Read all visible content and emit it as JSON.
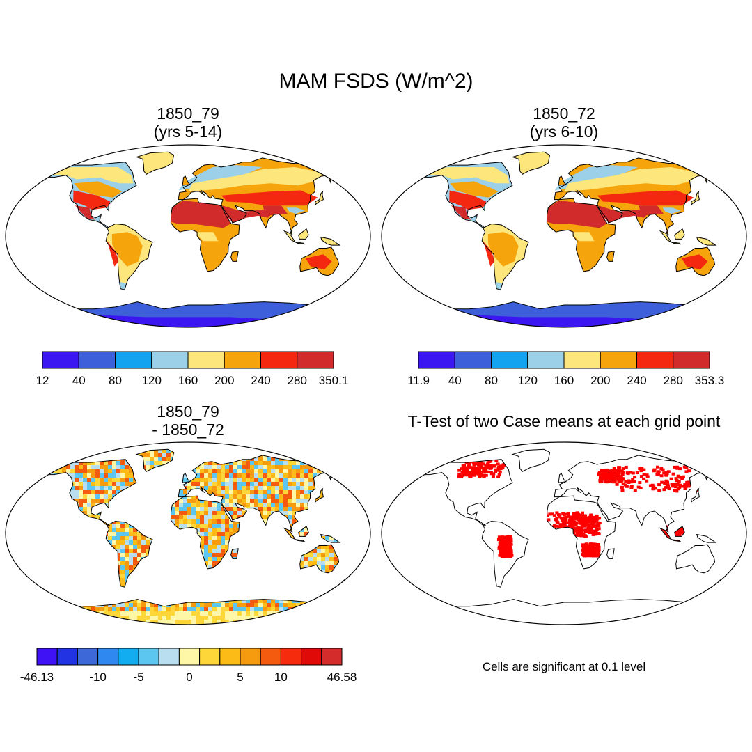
{
  "title": "MAM FSDS (W/m^2)",
  "panels": [
    {
      "id": "case1",
      "title_line1": "1850_79",
      "title_line2": "(yrs 5-14)"
    },
    {
      "id": "case2",
      "title_line1": "1850_72",
      "title_line2": "(yrs 6-10)"
    },
    {
      "id": "diff",
      "title_line1": "1850_79",
      "title_line2": "- 1850_72"
    },
    {
      "id": "ttest",
      "title_line1": "T-Test of two Case means at each grid point"
    }
  ],
  "colorbars": {
    "case1": {
      "colors": [
        "#3b16f0",
        "#3d5fd9",
        "#13a3ef",
        "#9bd0e8",
        "#fde67b",
        "#f6a40c",
        "#f42810",
        "#d22b2b"
      ],
      "labels": [
        "12",
        "40",
        "80",
        "120",
        "160",
        "200",
        "240",
        "280",
        "350.1"
      ]
    },
    "case2": {
      "colors": [
        "#3b16f0",
        "#3d5fd9",
        "#13a3ef",
        "#9bd0e8",
        "#fde67b",
        "#f6a40c",
        "#f42810",
        "#d22b2b"
      ],
      "labels": [
        "11.9",
        "40",
        "80",
        "120",
        "160",
        "200",
        "240",
        "280",
        "353.3"
      ]
    },
    "diff": {
      "colors": [
        "#3f12f5",
        "#2233e3",
        "#3c68d8",
        "#2f88f0",
        "#12acf0",
        "#5cc6f0",
        "#b8def0",
        "#fff7a8",
        "#fdd63a",
        "#fdbb18",
        "#f69a0f",
        "#f55b0e",
        "#f62a0c",
        "#e00a08",
        "#d42b2b"
      ],
      "labels": [
        "-46.13",
        "-10",
        "-5",
        "0",
        "5",
        "10",
        "46.58"
      ]
    }
  },
  "note": "Cells are significant at 0.1 level",
  "colors": {
    "land_outline": "#000000",
    "significant": "#ff0000"
  }
}
